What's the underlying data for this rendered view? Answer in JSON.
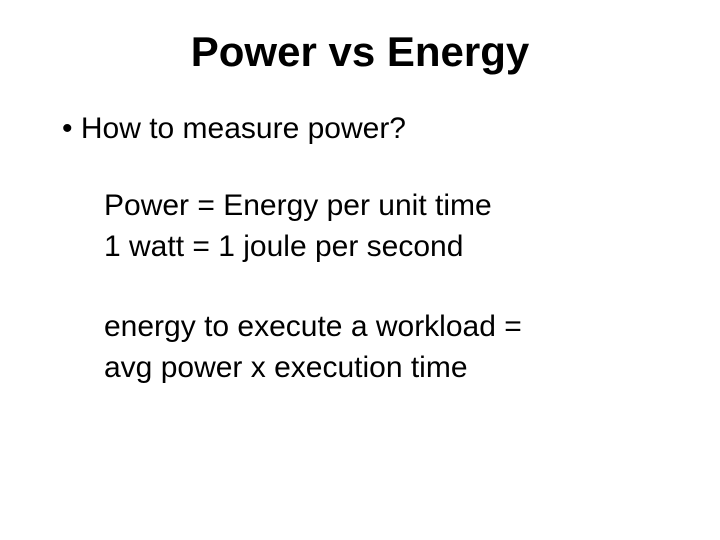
{
  "slide": {
    "title": "Power vs Energy",
    "bullet": "How to measure power?",
    "block1": {
      "line1": "Power = Energy per unit time",
      "line2": "1 watt = 1 joule per second"
    },
    "block2": {
      "line1": "energy to execute a workload =",
      "line2": "avg power x execution time"
    }
  },
  "style": {
    "background_color": "#ffffff",
    "text_color": "#000000",
    "font_family": "Verdana",
    "title_fontsize": 42,
    "title_fontweight": "bold",
    "body_fontsize": 30
  }
}
